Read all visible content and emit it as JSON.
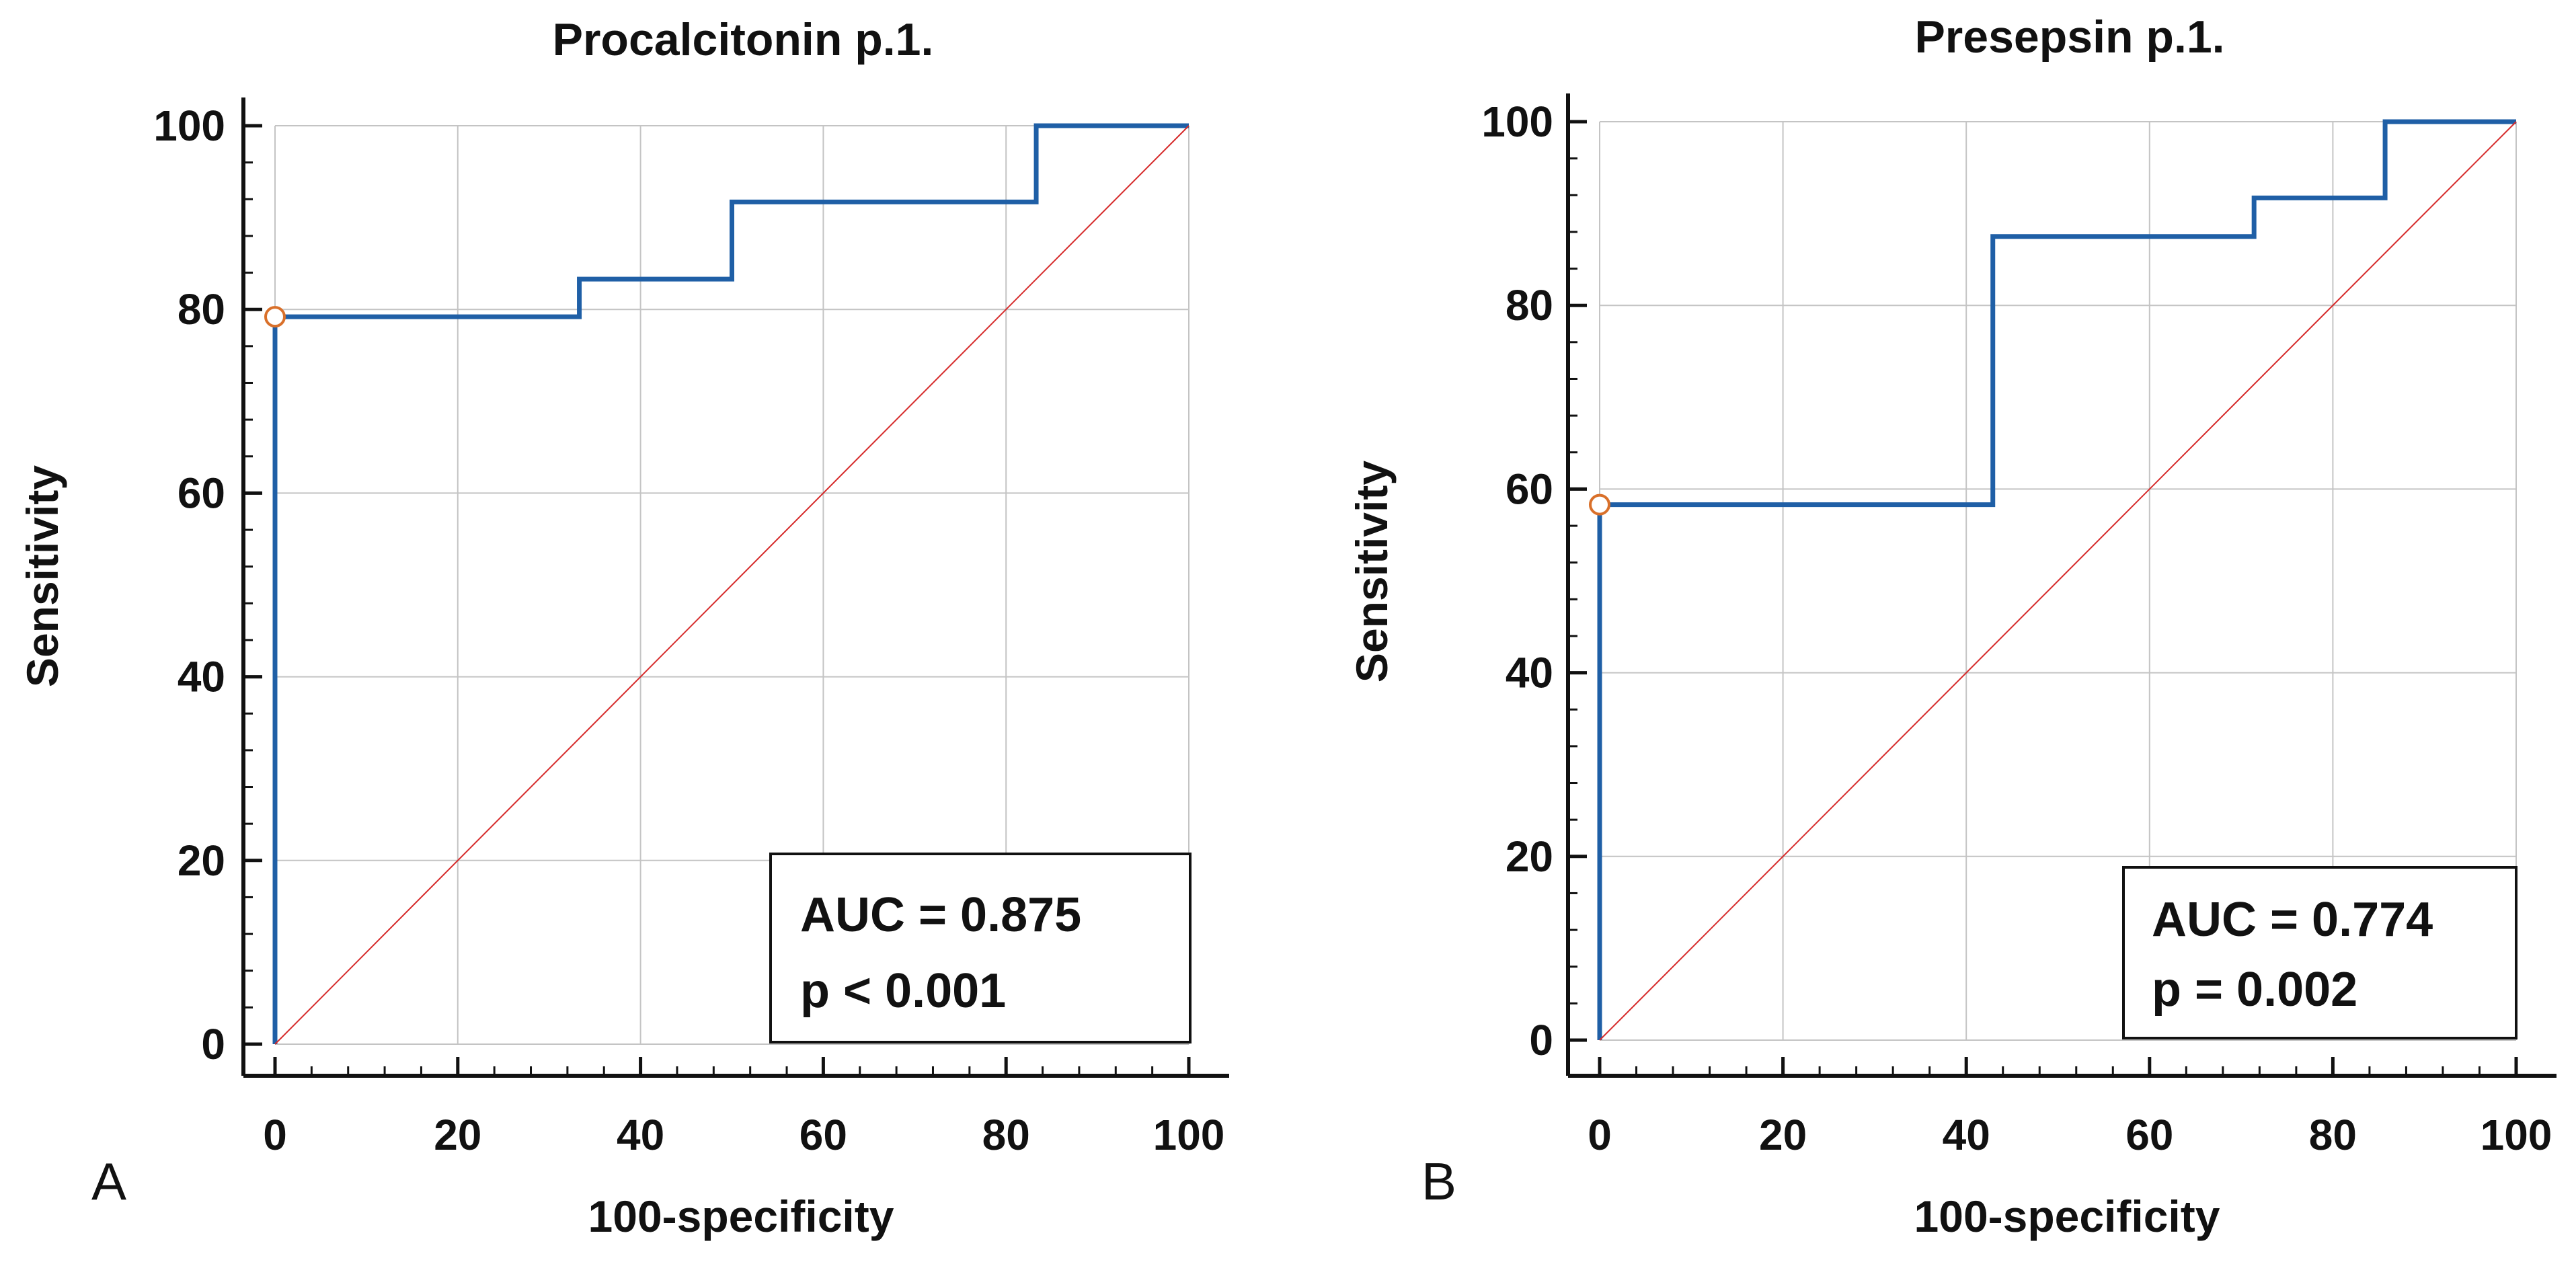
{
  "chart_data": [
    {
      "type": "line",
      "panel_label": "A",
      "title": "Procalcitonin p.1.",
      "xlabel": "100-specificity",
      "ylabel": "Sensitivity",
      "xlim": [
        0,
        100
      ],
      "ylim": [
        0,
        100
      ],
      "xticks": [
        "0",
        "20",
        "40",
        "60",
        "80",
        "100"
      ],
      "yticks": [
        "0",
        "20",
        "40",
        "60",
        "80",
        "100"
      ],
      "grid": true,
      "series": [
        {
          "name": "ROC curve",
          "color": "#1f5fa6",
          "x": [
            0,
            0,
            33.3,
            33.3,
            50,
            50,
            83.3,
            83.3,
            100
          ],
          "y": [
            0,
            79.2,
            79.2,
            83.3,
            83.3,
            91.7,
            91.7,
            100,
            100
          ]
        },
        {
          "name": "Reference line",
          "color": "#d62b2b",
          "x": [
            0,
            100
          ],
          "y": [
            0,
            100
          ]
        }
      ],
      "marker": {
        "x": 0,
        "y": 79.2
      },
      "stats": {
        "auc_text": "AUC = 0.875",
        "p_text": "p < 0.001"
      },
      "stats_position": "bottom-right"
    },
    {
      "type": "line",
      "panel_label": "B",
      "title": "Presepsin p.1.",
      "xlabel": "100-specificity",
      "ylabel": "Sensitivity",
      "xlim": [
        0,
        100
      ],
      "ylim": [
        0,
        100
      ],
      "xticks": [
        "0",
        "20",
        "40",
        "60",
        "80",
        "100"
      ],
      "yticks": [
        "0",
        "20",
        "40",
        "60",
        "80",
        "100"
      ],
      "grid": true,
      "series": [
        {
          "name": "ROC curve",
          "color": "#1f5fa6",
          "x": [
            0,
            0,
            42.9,
            42.9,
            71.4,
            71.4,
            85.7,
            85.7,
            100
          ],
          "y": [
            0,
            58.3,
            58.3,
            87.5,
            87.5,
            91.7,
            91.7,
            100,
            100
          ]
        },
        {
          "name": "Reference line",
          "color": "#d62b2b",
          "x": [
            0,
            100
          ],
          "y": [
            0,
            100
          ]
        }
      ],
      "marker": {
        "x": 0,
        "y": 58.3
      },
      "stats": {
        "auc_text": "AUC = 0.774",
        "p_text": "p = 0.002"
      },
      "stats_position": "bottom-right"
    }
  ]
}
